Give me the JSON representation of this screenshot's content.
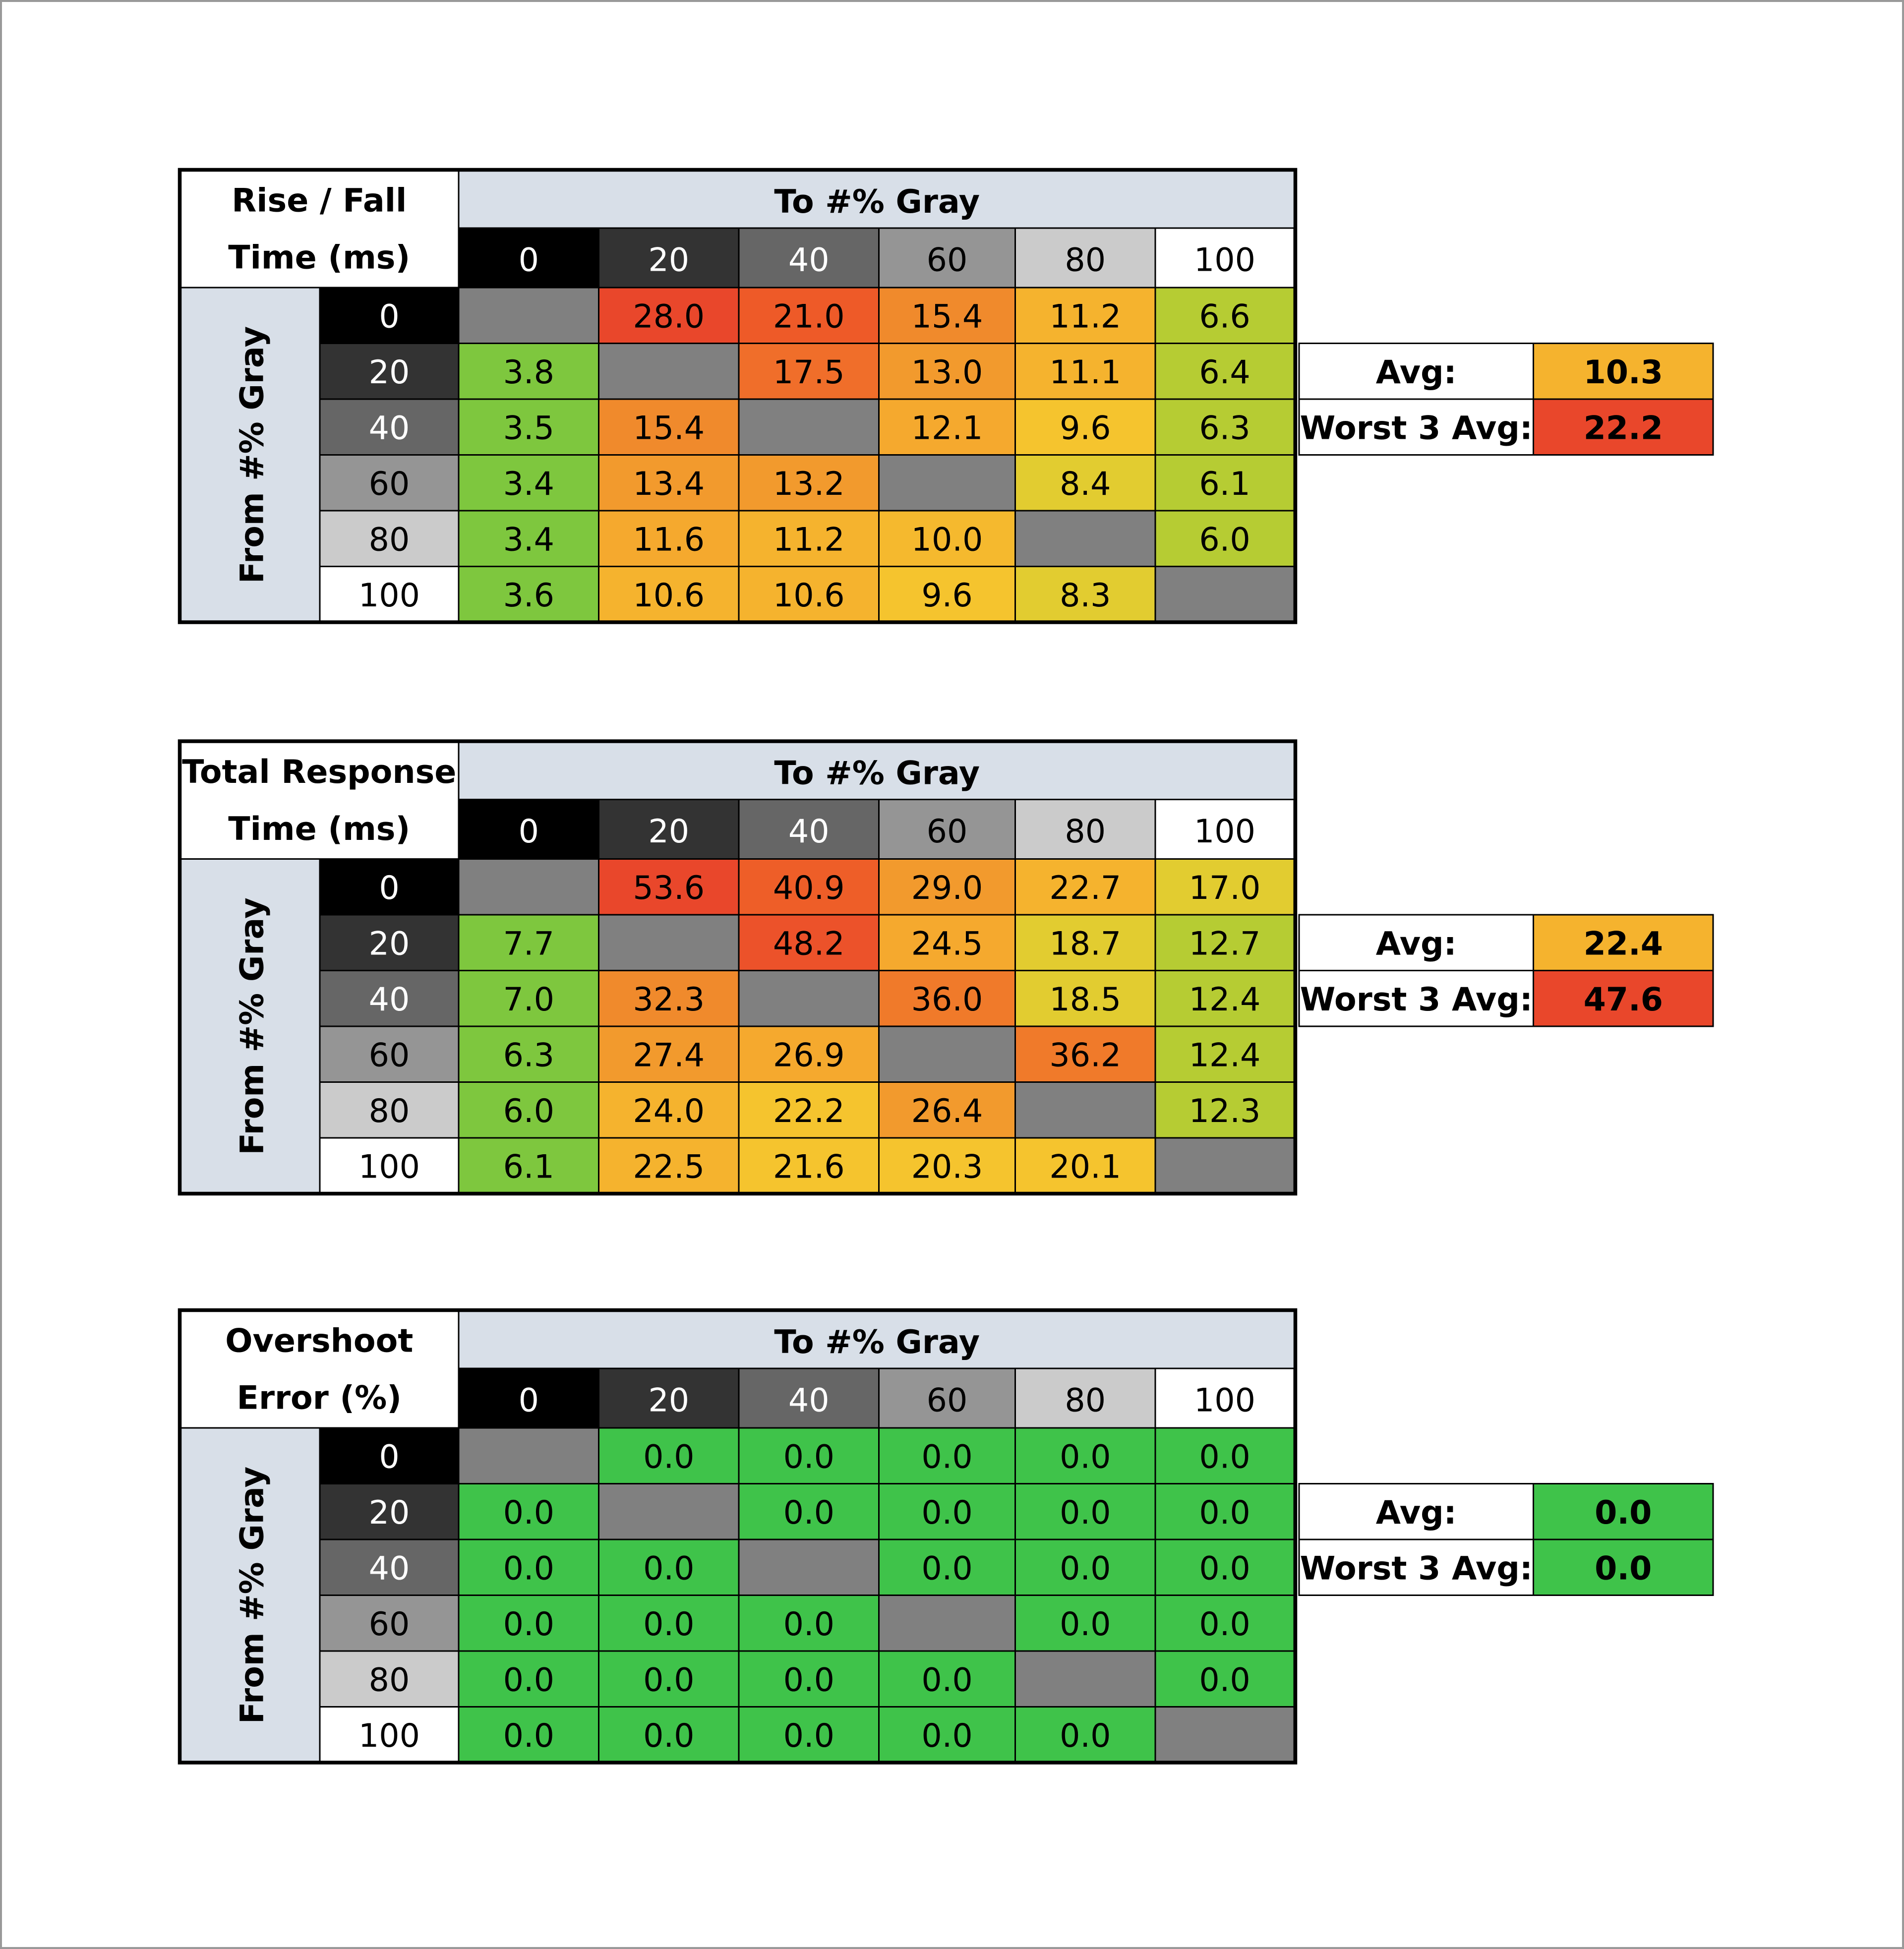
{
  "chart_data": [
    {
      "type": "table",
      "title_lines": [
        "Rise / Fall",
        "Time (ms)"
      ],
      "col_header": "To #% Gray",
      "row_header": "From #% Gray",
      "levels": [
        "0",
        "20",
        "40",
        "60",
        "80",
        "100"
      ],
      "cells": [
        [
          null,
          "28.0",
          "21.0",
          "15.4",
          "11.2",
          "6.6"
        ],
        [
          "3.8",
          null,
          "17.5",
          "13.0",
          "11.1",
          "6.4"
        ],
        [
          "3.5",
          "15.4",
          null,
          "12.1",
          "9.6",
          "6.3"
        ],
        [
          "3.4",
          "13.4",
          "13.2",
          null,
          "8.4",
          "6.1"
        ],
        [
          "3.4",
          "11.6",
          "11.2",
          "10.0",
          null,
          "6.0"
        ],
        [
          "3.6",
          "10.6",
          "10.6",
          "9.6",
          "8.3",
          null
        ]
      ],
      "cell_colors": [
        [
          null,
          "#e9472b",
          "#ee5a28",
          "#f08a2c",
          "#f5b32e",
          "#b6cc33"
        ],
        [
          "#7ec73e",
          null,
          "#f06e2a",
          "#f29a2d",
          "#f5b32e",
          "#b6cc33"
        ],
        [
          "#7ec73e",
          "#f08a2c",
          null,
          "#f5a92e",
          "#f5c42e",
          "#b6cc33"
        ],
        [
          "#7ec73e",
          "#f29a2d",
          "#f29a2d",
          null,
          "#e2cc30",
          "#b6cc33"
        ],
        [
          "#7ec73e",
          "#f5a92e",
          "#f5b32e",
          "#f5b92e",
          null,
          "#b6cc33"
        ],
        [
          "#7ec73e",
          "#f5b32e",
          "#f5b32e",
          "#f5c42e",
          "#e2cc30",
          null
        ]
      ],
      "summary": [
        {
          "label": "Avg:",
          "value": "10.3",
          "color": "#f5b32e"
        },
        {
          "label": "Worst 3 Avg:",
          "value": "22.2",
          "color": "#e9472b"
        }
      ]
    },
    {
      "type": "table",
      "title_lines": [
        "Total Response",
        "Time (ms)"
      ],
      "col_header": "To #% Gray",
      "row_header": "From #% Gray",
      "levels": [
        "0",
        "20",
        "40",
        "60",
        "80",
        "100"
      ],
      "cells": [
        [
          null,
          "53.6",
          "40.9",
          "29.0",
          "22.7",
          "17.0"
        ],
        [
          "7.7",
          null,
          "48.2",
          "24.5",
          "18.7",
          "12.7"
        ],
        [
          "7.0",
          "32.3",
          null,
          "36.0",
          "18.5",
          "12.4"
        ],
        [
          "6.3",
          "27.4",
          "26.9",
          null,
          "36.2",
          "12.4"
        ],
        [
          "6.0",
          "24.0",
          "22.2",
          "26.4",
          null,
          "12.3"
        ],
        [
          "6.1",
          "22.5",
          "21.6",
          "20.3",
          "20.1",
          null
        ]
      ],
      "cell_colors": [
        [
          null,
          "#e9472b",
          "#ee5e28",
          "#f29a2d",
          "#f5b32e",
          "#e2cc30"
        ],
        [
          "#7ec73e",
          null,
          "#ec522a",
          "#f5a92e",
          "#e2cc30",
          "#b6cc33"
        ],
        [
          "#7ec73e",
          "#f08a2c",
          null,
          "#f07a2a",
          "#e2cc30",
          "#b6cc33"
        ],
        [
          "#7ec73e",
          "#f29a2d",
          "#f5a92e",
          null,
          "#f07a2a",
          "#b6cc33"
        ],
        [
          "#7ec73e",
          "#f5b32e",
          "#f5c42e",
          "#f29a2d",
          null,
          "#b6cc33"
        ],
        [
          "#7ec73e",
          "#f5b32e",
          "#f5c42e",
          "#f5c42e",
          "#f5c42e",
          null
        ]
      ],
      "summary": [
        {
          "label": "Avg:",
          "value": "22.4",
          "color": "#f5b32e"
        },
        {
          "label": "Worst 3 Avg:",
          "value": "47.6",
          "color": "#e9472b"
        }
      ]
    },
    {
      "type": "table",
      "title_lines": [
        "Overshoot",
        "Error (%)"
      ],
      "col_header": "To #% Gray",
      "row_header": "From #% Gray",
      "levels": [
        "0",
        "20",
        "40",
        "60",
        "80",
        "100"
      ],
      "cells": [
        [
          null,
          "0.0",
          "0.0",
          "0.0",
          "0.0",
          "0.0"
        ],
        [
          "0.0",
          null,
          "0.0",
          "0.0",
          "0.0",
          "0.0"
        ],
        [
          "0.0",
          "0.0",
          null,
          "0.0",
          "0.0",
          "0.0"
        ],
        [
          "0.0",
          "0.0",
          "0.0",
          null,
          "0.0",
          "0.0"
        ],
        [
          "0.0",
          "0.0",
          "0.0",
          "0.0",
          null,
          "0.0"
        ],
        [
          "0.0",
          "0.0",
          "0.0",
          "0.0",
          "0.0",
          null
        ]
      ],
      "cell_colors": [
        [
          null,
          "#3fc34a",
          "#3fc34a",
          "#3fc34a",
          "#3fc34a",
          "#3fc34a"
        ],
        [
          "#3fc34a",
          null,
          "#3fc34a",
          "#3fc34a",
          "#3fc34a",
          "#3fc34a"
        ],
        [
          "#3fc34a",
          "#3fc34a",
          null,
          "#3fc34a",
          "#3fc34a",
          "#3fc34a"
        ],
        [
          "#3fc34a",
          "#3fc34a",
          "#3fc34a",
          null,
          "#3fc34a",
          "#3fc34a"
        ],
        [
          "#3fc34a",
          "#3fc34a",
          "#3fc34a",
          "#3fc34a",
          null,
          "#3fc34a"
        ],
        [
          "#3fc34a",
          "#3fc34a",
          "#3fc34a",
          "#3fc34a",
          "#3fc34a",
          null
        ]
      ],
      "summary": [
        {
          "label": "Avg:",
          "value": "0.0",
          "color": "#3fc34a"
        },
        {
          "label": "Worst 3 Avg:",
          "value": "0.0",
          "color": "#3fc34a"
        }
      ]
    }
  ],
  "colors": {
    "header_band": "#d8dfe8",
    "diagonal": "#808080",
    "level_fills": [
      "#000000",
      "#333333",
      "#666666",
      "#959595",
      "#cbcbcb",
      "#ffffff"
    ],
    "level_text": [
      "#ffffff",
      "#ffffff",
      "#ffffff",
      "#000000",
      "#000000",
      "#000000"
    ]
  }
}
